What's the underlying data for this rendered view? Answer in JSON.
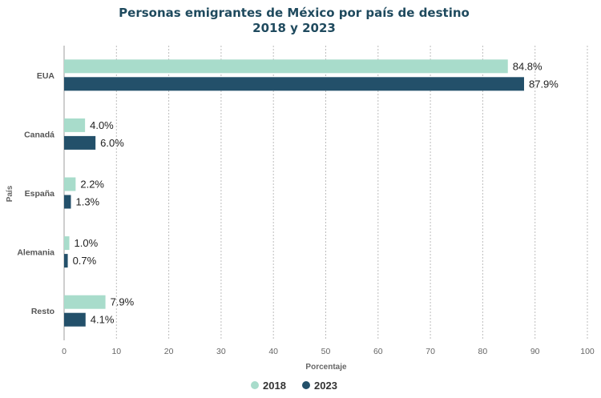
{
  "chart_data": {
    "type": "bar",
    "orientation": "horizontal",
    "title_line1": "Personas emigrantes de México por país de destino",
    "title_line2": "2018 y 2023",
    "xlabel": "Porcentaje",
    "ylabel": "País",
    "xlim": [
      0,
      100
    ],
    "xticks": [
      0,
      10,
      20,
      30,
      40,
      50,
      60,
      70,
      80,
      90,
      100
    ],
    "grid": "vertical-dashed",
    "legend_position": "bottom-center",
    "categories": [
      "EUA",
      "Canadá",
      "España",
      "Alemania",
      "Resto"
    ],
    "series": [
      {
        "name": "2018",
        "color": "#a8dccb",
        "values": [
          84.8,
          4.0,
          2.2,
          1.0,
          7.9
        ],
        "labels": [
          "84.8%",
          "4.0%",
          "2.2%",
          "1.0%",
          "7.9%"
        ]
      },
      {
        "name": "2023",
        "color": "#23506a",
        "values": [
          87.9,
          6.0,
          1.3,
          0.7,
          4.1
        ],
        "labels": [
          "87.9%",
          "6.0%",
          "1.3%",
          "0.7%",
          "4.1%"
        ]
      }
    ]
  }
}
